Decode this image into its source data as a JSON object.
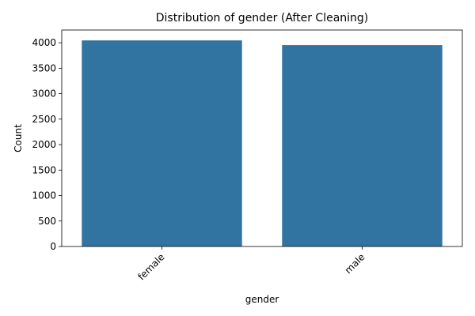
{
  "chart_data": {
    "type": "bar",
    "title": "Distribution of gender (After Cleaning)",
    "xlabel": "gender",
    "ylabel": "Count",
    "categories": [
      "female",
      "male"
    ],
    "values": [
      4046,
      3954
    ],
    "ylim": [
      0,
      4250
    ],
    "yticks": [
      0,
      500,
      1000,
      1500,
      2000,
      2500,
      3000,
      3500,
      4000
    ],
    "ytick_labels": [
      "0",
      "500",
      "1000",
      "1500",
      "2000",
      "2500",
      "3000",
      "3500",
      "4000"
    ],
    "bar_color": "#3274a1",
    "grid": false,
    "legend": "none",
    "xtick_rotation_deg": 45
  }
}
